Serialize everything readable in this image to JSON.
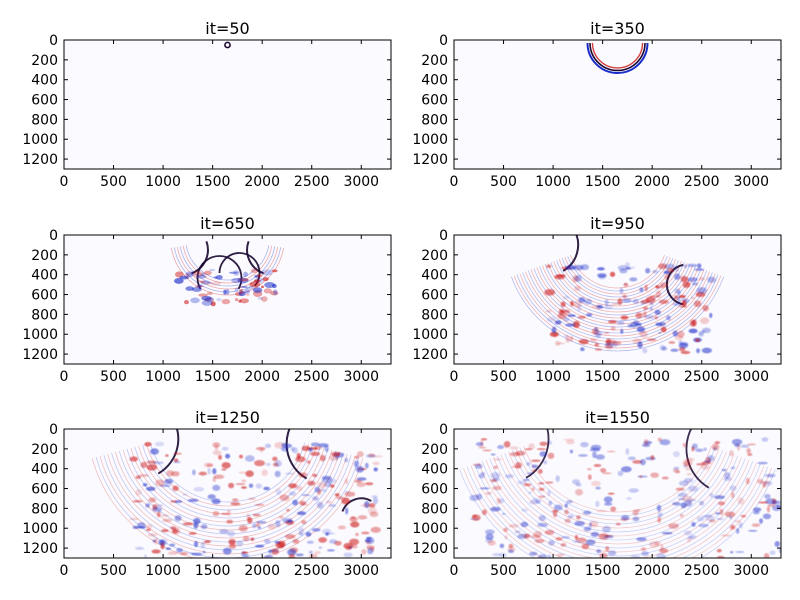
{
  "chart_data": [
    {
      "type": "heatmap",
      "title": "it=50",
      "xlim": [
        0,
        3300
      ],
      "ylim": [
        1300,
        0
      ],
      "xticks": [
        "0",
        "500",
        "1000",
        "1500",
        "2000",
        "2500",
        "3000"
      ],
      "yticks": [
        "0",
        "200",
        "400",
        "600",
        "800",
        "1000",
        "1200"
      ],
      "colormap": "seismic",
      "background": "#fbfbff"
    },
    {
      "type": "heatmap",
      "title": "it=350",
      "xlim": [
        0,
        3300
      ],
      "ylim": [
        1300,
        0
      ],
      "xticks": [
        "0",
        "500",
        "1000",
        "1500",
        "2000",
        "2500",
        "3000"
      ],
      "yticks": [
        "0",
        "200",
        "400",
        "600",
        "800",
        "1000",
        "1200"
      ],
      "colormap": "seismic",
      "background": "#fbfbff"
    },
    {
      "type": "heatmap",
      "title": "it=650",
      "xlim": [
        0,
        3300
      ],
      "ylim": [
        1300,
        0
      ],
      "xticks": [
        "0",
        "500",
        "1000",
        "1500",
        "2000",
        "2500",
        "3000"
      ],
      "yticks": [
        "0",
        "200",
        "400",
        "600",
        "800",
        "1000",
        "1200"
      ],
      "colormap": "seismic",
      "background": "#fbfbff"
    },
    {
      "type": "heatmap",
      "title": "it=950",
      "xlim": [
        0,
        3300
      ],
      "ylim": [
        1300,
        0
      ],
      "xticks": [
        "0",
        "500",
        "1000",
        "1500",
        "2000",
        "2500",
        "3000"
      ],
      "yticks": [
        "0",
        "200",
        "400",
        "600",
        "800",
        "1000",
        "1200"
      ],
      "colormap": "seismic",
      "background": "#fbfbff"
    },
    {
      "type": "heatmap",
      "title": "it=1250",
      "xlim": [
        0,
        3300
      ],
      "ylim": [
        1300,
        0
      ],
      "xticks": [
        "0",
        "500",
        "1000",
        "1500",
        "2000",
        "2500",
        "3000"
      ],
      "yticks": [
        "0",
        "200",
        "400",
        "600",
        "800",
        "1000",
        "1200"
      ],
      "colormap": "seismic",
      "background": "#fbfbff"
    },
    {
      "type": "heatmap",
      "title": "it=1550",
      "xlim": [
        0,
        3300
      ],
      "ylim": [
        1300,
        0
      ],
      "xticks": [
        "0",
        "500",
        "1000",
        "1500",
        "2000",
        "2500",
        "3000"
      ],
      "yticks": [
        "0",
        "200",
        "400",
        "600",
        "800",
        "1000",
        "1200"
      ],
      "colormap": "seismic",
      "background": "#fbfbff"
    }
  ],
  "colors": {
    "positive": "#cc1111",
    "negative": "#1a2cc8",
    "strong": "#1a0830",
    "axis": "#000000"
  }
}
